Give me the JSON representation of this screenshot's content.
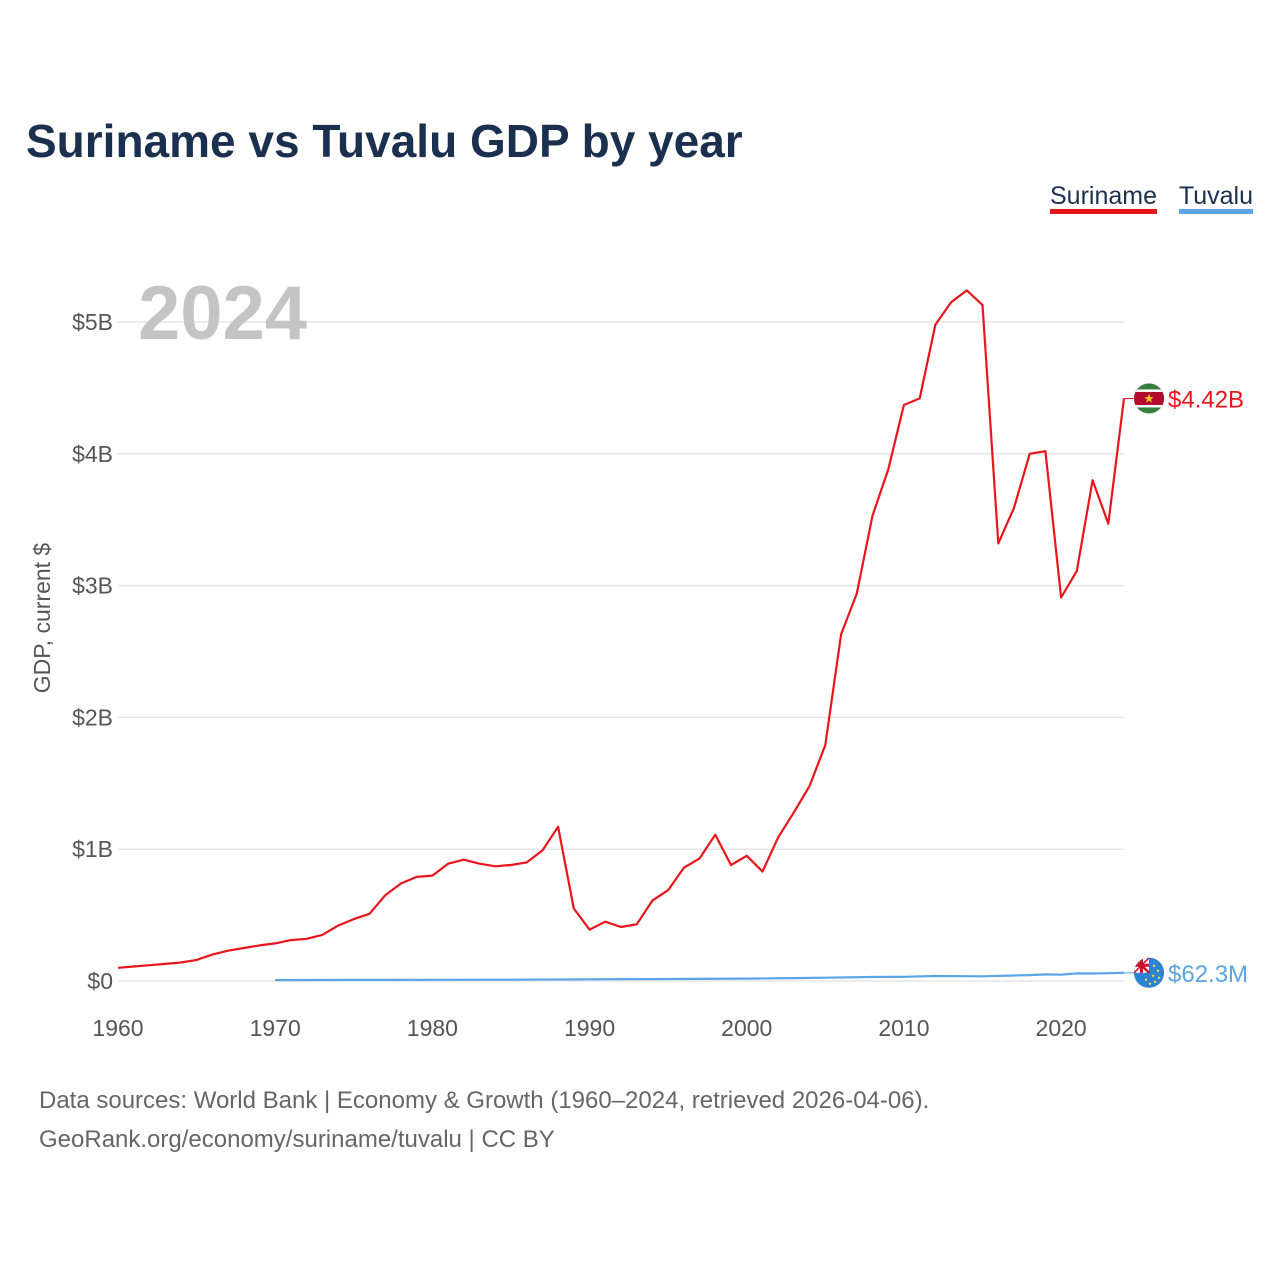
{
  "chart_data": {
    "type": "line",
    "title": "Suriname vs Tuvalu GDP by year",
    "highlight_year": "2024",
    "ylabel": "GDP, current $",
    "xlabel": "",
    "xlim": [
      1960,
      2024
    ],
    "ylim": [
      0,
      5000000000
    ],
    "x_ticks": [
      1960,
      1970,
      1980,
      1990,
      2000,
      2010,
      2020
    ],
    "x_tick_labels": [
      "1960",
      "1970",
      "1980",
      "1990",
      "2000",
      "2010",
      "2020"
    ],
    "y_ticks": [
      0,
      1000000000,
      2000000000,
      3000000000,
      4000000000,
      5000000000
    ],
    "y_tick_labels": [
      "$0",
      "$1B",
      "$2B",
      "$3B",
      "$4B",
      "$5B"
    ],
    "grid": true,
    "legend_position": "top-right",
    "series": [
      {
        "name": "Suriname",
        "color": "#e8151b",
        "end_label": "$4.42B",
        "flag": "suriname-flag",
        "x": [
          1960,
          1961,
          1962,
          1963,
          1964,
          1965,
          1966,
          1967,
          1968,
          1969,
          1970,
          1971,
          1972,
          1973,
          1974,
          1975,
          1976,
          1977,
          1978,
          1979,
          1980,
          1981,
          1982,
          1983,
          1984,
          1985,
          1986,
          1987,
          1988,
          1989,
          1990,
          1991,
          1992,
          1993,
          1994,
          1995,
          1996,
          1997,
          1998,
          1999,
          2000,
          2001,
          2002,
          2003,
          2004,
          2005,
          2006,
          2007,
          2008,
          2009,
          2010,
          2011,
          2012,
          2013,
          2014,
          2015,
          2016,
          2017,
          2018,
          2019,
          2020,
          2021,
          2022,
          2023,
          2024
        ],
        "values": [
          100000000,
          110000000,
          120000000,
          130000000,
          140000000,
          160000000,
          200000000,
          230000000,
          250000000,
          270000000,
          285000000,
          310000000,
          320000000,
          350000000,
          420000000,
          470000000,
          510000000,
          650000000,
          740000000,
          790000000,
          800000000,
          890000000,
          920000000,
          890000000,
          870000000,
          880000000,
          900000000,
          990000000,
          1170000000,
          550000000,
          390000000,
          450000000,
          410000000,
          430000000,
          610000000,
          690000000,
          860000000,
          930000000,
          1110000000,
          880000000,
          950000000,
          830000000,
          1090000000,
          1280000000,
          1480000000,
          1790000000,
          2630000000,
          2940000000,
          3530000000,
          3880000000,
          4370000000,
          4420000000,
          4980000000,
          5150000000,
          5240000000,
          5130000000,
          3320000000,
          3590000000,
          4000000000,
          4020000000,
          2910000000,
          3110000000,
          3800000000,
          3470000000,
          4420000000
        ]
      },
      {
        "name": "Tuvalu",
        "color": "#5ba4e6",
        "end_label": "$62.3M",
        "flag": "tuvalu-flag",
        "x": [
          1970,
          1975,
          1980,
          1985,
          1990,
          1995,
          2000,
          2003,
          2005,
          2008,
          2010,
          2012,
          2015,
          2017,
          2018,
          2019,
          2020,
          2021,
          2022,
          2023,
          2024
        ],
        "values": [
          7000000,
          8000000,
          9000000,
          10000000,
          13000000,
          15000000,
          18000000,
          22000000,
          25000000,
          30000000,
          32000000,
          38000000,
          36000000,
          42000000,
          45000000,
          50000000,
          48000000,
          58000000,
          57000000,
          59000000,
          62300000
        ]
      }
    ],
    "source_lines": [
      "Data sources: World Bank | Economy & Growth (1960–2024, retrieved 2026-04-06).",
      "GeoRank.org/economy/suriname/tuvalu | CC BY"
    ]
  }
}
